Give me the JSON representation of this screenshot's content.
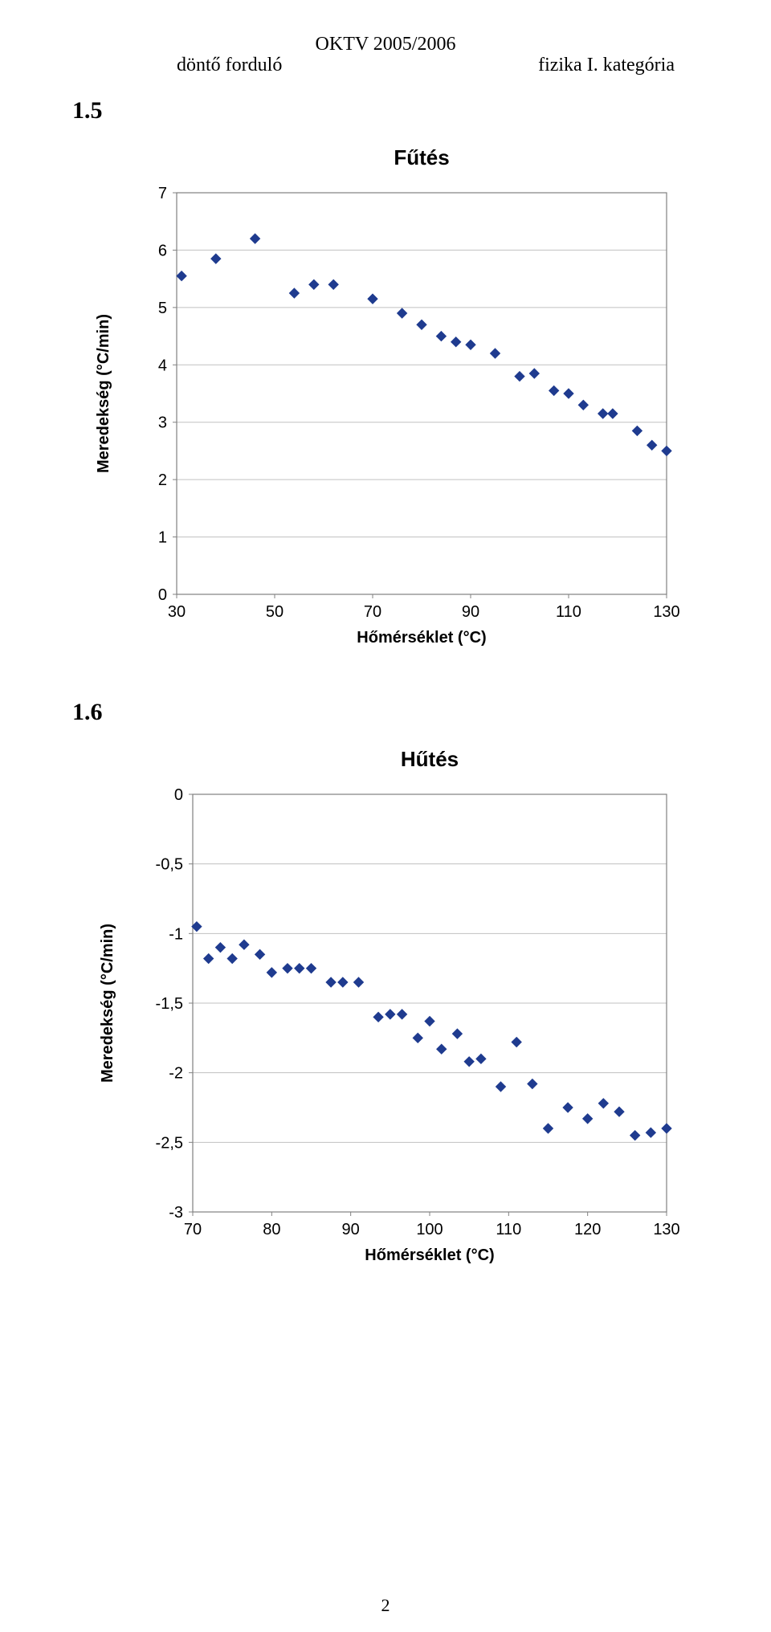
{
  "header": {
    "top_center": "OKTV 2005/2006",
    "left": "döntő forduló",
    "right": "fizika I. kategória"
  },
  "sections": {
    "s1": "1.5",
    "s2": "1.6"
  },
  "page_number": "2",
  "chart1": {
    "type": "scatter",
    "title": "Fűtés",
    "xlabel": "Hőmérséklet (°C)",
    "ylabel": "Meredekség (°C/min)",
    "xlim": [
      30,
      130
    ],
    "ylim": [
      0,
      7
    ],
    "xticks": [
      30,
      50,
      70,
      90,
      110,
      130
    ],
    "yticks": [
      0,
      1,
      2,
      3,
      4,
      5,
      6,
      7
    ],
    "grid_color": "#c0c0c0",
    "border_color": "#808080",
    "background_color": "#ffffff",
    "marker_color": "#1f3b8f",
    "marker_size": 6,
    "points": [
      [
        31,
        5.55
      ],
      [
        38,
        5.85
      ],
      [
        46,
        6.2
      ],
      [
        54,
        5.25
      ],
      [
        58,
        5.4
      ],
      [
        62,
        5.4
      ],
      [
        70,
        5.15
      ],
      [
        76,
        4.9
      ],
      [
        80,
        4.7
      ],
      [
        84,
        4.5
      ],
      [
        87,
        4.4
      ],
      [
        90,
        4.35
      ],
      [
        95,
        4.2
      ],
      [
        100,
        3.8
      ],
      [
        103,
        3.85
      ],
      [
        107,
        3.55
      ],
      [
        110,
        3.5
      ],
      [
        113,
        3.3
      ],
      [
        117,
        3.15
      ],
      [
        119,
        3.15
      ],
      [
        124,
        2.85
      ],
      [
        127,
        2.6
      ],
      [
        130,
        2.5
      ]
    ]
  },
  "chart2": {
    "type": "scatter",
    "title": "Hűtés",
    "xlabel": "Hőmérséklet (°C)",
    "ylabel": "Meredekség (°C/min)",
    "xlim": [
      70,
      130
    ],
    "ylim": [
      -3,
      0
    ],
    "xticks": [
      70,
      80,
      90,
      100,
      110,
      120,
      130
    ],
    "yticks": [
      -3,
      -2.5,
      -2,
      -1.5,
      -1,
      -0.5,
      0
    ],
    "ytick_labels": [
      "-3",
      "-2,5",
      "-2",
      "-1,5",
      "-1",
      "-0,5",
      "0"
    ],
    "grid_color": "#c0c0c0",
    "border_color": "#808080",
    "background_color": "#ffffff",
    "marker_color": "#1f3b8f",
    "marker_size": 6,
    "points": [
      [
        70.5,
        -0.95
      ],
      [
        72,
        -1.18
      ],
      [
        73.5,
        -1.1
      ],
      [
        75,
        -1.18
      ],
      [
        76.5,
        -1.08
      ],
      [
        78.5,
        -1.15
      ],
      [
        80,
        -1.28
      ],
      [
        82,
        -1.25
      ],
      [
        83.5,
        -1.25
      ],
      [
        85,
        -1.25
      ],
      [
        87.5,
        -1.35
      ],
      [
        89,
        -1.35
      ],
      [
        91,
        -1.35
      ],
      [
        93.5,
        -1.6
      ],
      [
        95,
        -1.58
      ],
      [
        96.5,
        -1.58
      ],
      [
        98.5,
        -1.75
      ],
      [
        100,
        -1.63
      ],
      [
        101.5,
        -1.83
      ],
      [
        103.5,
        -1.72
      ],
      [
        105,
        -1.92
      ],
      [
        106.5,
        -1.9
      ],
      [
        109,
        -2.1
      ],
      [
        111,
        -1.78
      ],
      [
        113,
        -2.08
      ],
      [
        115,
        -2.4
      ],
      [
        117.5,
        -2.25
      ],
      [
        120,
        -2.33
      ],
      [
        122,
        -2.22
      ],
      [
        124,
        -2.28
      ],
      [
        126,
        -2.45
      ],
      [
        128,
        -2.43
      ],
      [
        130,
        -2.4
      ]
    ]
  }
}
